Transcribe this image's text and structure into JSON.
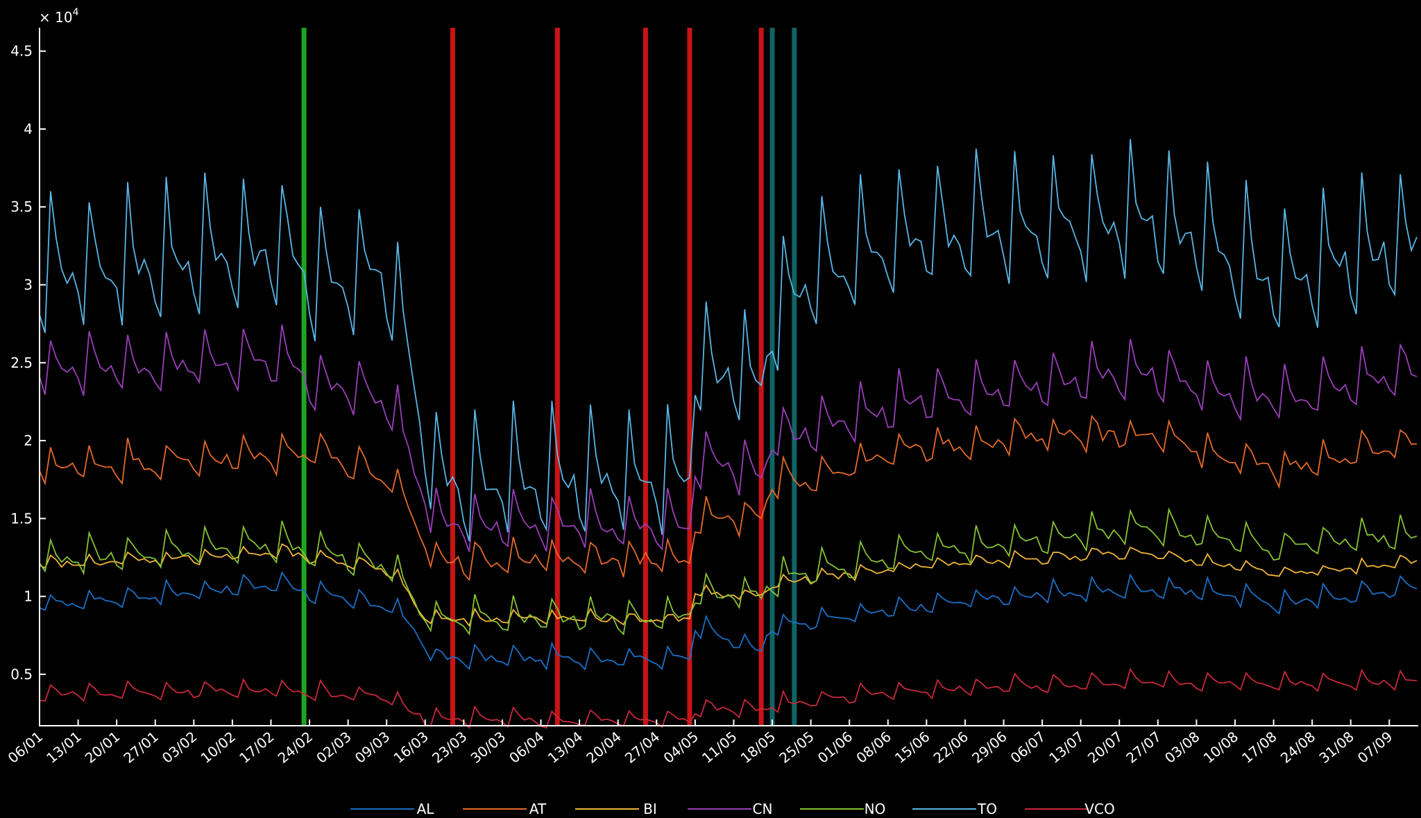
{
  "chart_data": {
    "type": "line",
    "title": "",
    "xlabel": "",
    "ylabel": "",
    "y_multiplier_label": "× 10",
    "y_multiplier_exp": "4",
    "ylim": [
      0.17,
      4.65
    ],
    "xlim": [
      0,
      250
    ],
    "grid": false,
    "legend_placement": "bottom",
    "y_ticks": [
      {
        "value": 0.5,
        "label": "0.5"
      },
      {
        "value": 1,
        "label": "1"
      },
      {
        "value": 1.5,
        "label": "1.5"
      },
      {
        "value": 2,
        "label": "2"
      },
      {
        "value": 2.5,
        "label": "2.5"
      },
      {
        "value": 3,
        "label": "3"
      },
      {
        "value": 3.5,
        "label": "3.5"
      },
      {
        "value": 4,
        "label": "4"
      },
      {
        "value": 4.5,
        "label": "4.5"
      }
    ],
    "x_tick_labels": [
      "06/01",
      "13/01",
      "20/01",
      "27/01",
      "03/02",
      "10/02",
      "17/02",
      "24/02",
      "02/03",
      "09/03",
      "16/03",
      "23/03",
      "30/03",
      "06/04",
      "13/04",
      "20/04",
      "27/04",
      "04/05",
      "11/05",
      "18/05",
      "25/05",
      "01/06",
      "08/06",
      "15/06",
      "22/06",
      "29/06",
      "06/07",
      "13/07",
      "20/07",
      "27/07",
      "03/08",
      "10/08",
      "17/08",
      "24/08",
      "31/08",
      "07/09"
    ],
    "x_tick_step_days": 7,
    "events": [
      {
        "day": 48,
        "color": "#1fa51f"
      },
      {
        "day": 75,
        "color": "#c81414"
      },
      {
        "day": 94,
        "color": "#c81414"
      },
      {
        "day": 110,
        "color": "#c81414"
      },
      {
        "day": 118,
        "color": "#c81414"
      },
      {
        "day": 131,
        "color": "#c81414"
      },
      {
        "day": 133,
        "color": "#0f6464"
      },
      {
        "day": 137,
        "color": "#0f6464"
      }
    ],
    "series": [
      {
        "name": "AL",
        "color": "#1a6fc4",
        "segments": [
          [
            0,
            0.94
          ],
          [
            45,
            1.08
          ],
          [
            49,
            1.02
          ],
          [
            60,
            0.95
          ],
          [
            64,
            0.94
          ],
          [
            72,
            0.6
          ],
          [
            118,
            0.6
          ],
          [
            119,
            0.8
          ],
          [
            131,
            0.66
          ],
          [
            133,
            0.8
          ],
          [
            170,
            0.98
          ],
          [
            200,
            1.05
          ],
          [
            215,
            1.02
          ],
          [
            225,
            0.95
          ],
          [
            250,
            1.06
          ]
        ],
        "weekly_amp": 0.08,
        "peak_dow": 2,
        "noise": 0.02
      },
      {
        "name": "AT",
        "color": "#e46a2a",
        "segments": [
          [
            0,
            1.82
          ],
          [
            45,
            1.9
          ],
          [
            49,
            1.95
          ],
          [
            60,
            1.8
          ],
          [
            64,
            1.72
          ],
          [
            72,
            1.22
          ],
          [
            118,
            1.25
          ],
          [
            119,
            1.48
          ],
          [
            131,
            1.5
          ],
          [
            133,
            1.7
          ],
          [
            160,
            1.95
          ],
          [
            190,
            2.05
          ],
          [
            205,
            2.0
          ],
          [
            215,
            1.9
          ],
          [
            225,
            1.82
          ],
          [
            250,
            1.98
          ]
        ],
        "weekly_amp": 0.14,
        "peak_dow": 2,
        "noise": 0.04
      },
      {
        "name": "BI",
        "color": "#f0b63a",
        "segments": [
          [
            0,
            1.2
          ],
          [
            45,
            1.28
          ],
          [
            49,
            1.24
          ],
          [
            60,
            1.2
          ],
          [
            64,
            1.16
          ],
          [
            70,
            0.86
          ],
          [
            118,
            0.85
          ],
          [
            119,
            1.02
          ],
          [
            131,
            1.0
          ],
          [
            133,
            1.08
          ],
          [
            160,
            1.2
          ],
          [
            200,
            1.28
          ],
          [
            215,
            1.2
          ],
          [
            225,
            1.14
          ],
          [
            250,
            1.22
          ]
        ],
        "weekly_amp": 0.05,
        "peak_dow": 2,
        "noise": 0.02
      },
      {
        "name": "CN",
        "color": "#9a3fb8",
        "segments": [
          [
            0,
            2.45
          ],
          [
            45,
            2.5
          ],
          [
            49,
            2.35
          ],
          [
            60,
            2.3
          ],
          [
            64,
            2.2
          ],
          [
            72,
            1.45
          ],
          [
            118,
            1.45
          ],
          [
            119,
            1.85
          ],
          [
            131,
            1.8
          ],
          [
            133,
            2.0
          ],
          [
            160,
            2.25
          ],
          [
            200,
            2.45
          ],
          [
            215,
            2.3
          ],
          [
            225,
            2.25
          ],
          [
            250,
            2.45
          ]
        ],
        "weekly_amp": 0.22,
        "peak_dow": 2,
        "noise": 0.04
      },
      {
        "name": "NO",
        "color": "#86c232",
        "segments": [
          [
            0,
            1.23
          ],
          [
            45,
            1.33
          ],
          [
            49,
            1.27
          ],
          [
            60,
            1.22
          ],
          [
            64,
            1.16
          ],
          [
            70,
            0.86
          ],
          [
            118,
            0.86
          ],
          [
            119,
            1.03
          ],
          [
            131,
            1.0
          ],
          [
            133,
            1.1
          ],
          [
            160,
            1.28
          ],
          [
            200,
            1.42
          ],
          [
            215,
            1.38
          ],
          [
            225,
            1.3
          ],
          [
            250,
            1.4
          ]
        ],
        "weekly_amp": 0.13,
        "peak_dow": 2,
        "noise": 0.03
      },
      {
        "name": "TO",
        "color": "#5ab6e6",
        "segments": [
          [
            0,
            3.05
          ],
          [
            45,
            3.2
          ],
          [
            49,
            3.0
          ],
          [
            60,
            3.05
          ],
          [
            64,
            3.0
          ],
          [
            72,
            1.7
          ],
          [
            118,
            1.75
          ],
          [
            119,
            2.45
          ],
          [
            131,
            2.35
          ],
          [
            133,
            2.75
          ],
          [
            140,
            3.05
          ],
          [
            160,
            3.3
          ],
          [
            200,
            3.4
          ],
          [
            215,
            3.2
          ],
          [
            225,
            3.0
          ],
          [
            250,
            3.3
          ]
        ],
        "weekly_amp": 0.5,
        "peak_dow": 2,
        "noise": 0.07
      },
      {
        "name": "VCO",
        "color": "#c8283c",
        "segments": [
          [
            0,
            0.37
          ],
          [
            45,
            0.4
          ],
          [
            49,
            0.38
          ],
          [
            64,
            0.35
          ],
          [
            70,
            0.21
          ],
          [
            118,
            0.2
          ],
          [
            119,
            0.28
          ],
          [
            131,
            0.27
          ],
          [
            133,
            0.3
          ],
          [
            160,
            0.4
          ],
          [
            200,
            0.45
          ],
          [
            225,
            0.44
          ],
          [
            250,
            0.45
          ]
        ],
        "weekly_amp": 0.07,
        "peak_dow": 2,
        "noise": 0.015
      }
    ]
  }
}
